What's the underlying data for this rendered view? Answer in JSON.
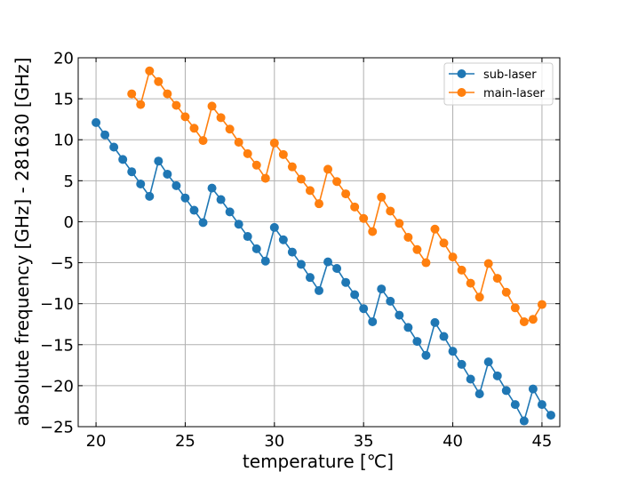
{
  "chart_data": {
    "type": "line",
    "title": "",
    "xlabel": "temperature [℃]",
    "ylabel": "absolute frequency [GHz] - 281630 [GHz]",
    "xlim": [
      19,
      46
    ],
    "ylim": [
      -25,
      20
    ],
    "xticks": [
      20,
      25,
      30,
      35,
      40,
      45
    ],
    "yticks": [
      20,
      15,
      10,
      5,
      0,
      -5,
      -10,
      -15,
      -20,
      -25
    ],
    "xtick_labels": [
      "20",
      "25",
      "30",
      "35",
      "40",
      "45"
    ],
    "ytick_labels": [
      "20",
      "15",
      "10",
      "5",
      "0",
      "−5",
      "−10",
      "−15",
      "−20",
      "−25"
    ],
    "grid": true,
    "legend_position": "top-right",
    "series": [
      {
        "name": "sub-laser",
        "color": "#1f77b4",
        "x": [
          20,
          20.5,
          21,
          21.5,
          22,
          22.5,
          23,
          23.5,
          24,
          24.5,
          25,
          25.5,
          26,
          26.5,
          27,
          27.5,
          28,
          28.5,
          29,
          29.5,
          30,
          30.5,
          31,
          31.5,
          32,
          32.5,
          33,
          33.5,
          34,
          34.5,
          35,
          35.5,
          36,
          36.5,
          37,
          37.5,
          38,
          38.5,
          39,
          39.5,
          40,
          40.5,
          41,
          41.5,
          42,
          42.5,
          43,
          43.5,
          44,
          44.5,
          45,
          45.5
        ],
        "values": [
          12.1,
          10.6,
          9.1,
          7.6,
          6.1,
          4.6,
          3.1,
          7.4,
          5.8,
          4.4,
          2.9,
          1.4,
          -0.1,
          4.1,
          2.7,
          1.2,
          -0.3,
          -1.8,
          -3.3,
          -4.8,
          -0.7,
          -2.2,
          -3.7,
          -5.2,
          -6.8,
          -8.4,
          -4.9,
          -5.7,
          -7.4,
          -8.9,
          -10.6,
          -12.2,
          -8.2,
          -9.7,
          -11.4,
          -12.9,
          -14.6,
          -16.3,
          -12.3,
          -14.0,
          -15.8,
          -17.4,
          -19.2,
          -21.0,
          -17.1,
          -18.8,
          -20.6,
          -22.3,
          -24.3,
          -20.4,
          -22.3,
          -23.6
        ]
      },
      {
        "name": "main-laser",
        "color": "#ff7f0e",
        "x": [
          22,
          22.5,
          23,
          23.5,
          24,
          24.5,
          25,
          25.5,
          26,
          26.5,
          27,
          27.5,
          28,
          28.5,
          29,
          29.5,
          30,
          30.5,
          31,
          31.5,
          32,
          32.5,
          33,
          33.5,
          34,
          34.5,
          35,
          35.5,
          36,
          36.5,
          37,
          37.5,
          38,
          38.5,
          39,
          39.5,
          40,
          40.5,
          41,
          41.5,
          42,
          42.5,
          43,
          43.5,
          44,
          44.5,
          45
        ],
        "values": [
          15.6,
          14.3,
          18.4,
          17.1,
          15.6,
          14.2,
          12.8,
          11.4,
          9.9,
          14.1,
          12.7,
          11.3,
          9.7,
          8.3,
          6.9,
          5.3,
          9.6,
          8.2,
          6.7,
          5.2,
          3.8,
          2.2,
          6.4,
          4.9,
          3.4,
          1.8,
          0.4,
          -1.2,
          3.0,
          1.3,
          -0.2,
          -1.9,
          -3.4,
          -5.0,
          -0.9,
          -2.6,
          -4.3,
          -5.9,
          -7.5,
          -9.2,
          -5.1,
          -6.9,
          -8.6,
          -10.5,
          -12.2,
          -11.9,
          -10.1
        ]
      }
    ]
  }
}
